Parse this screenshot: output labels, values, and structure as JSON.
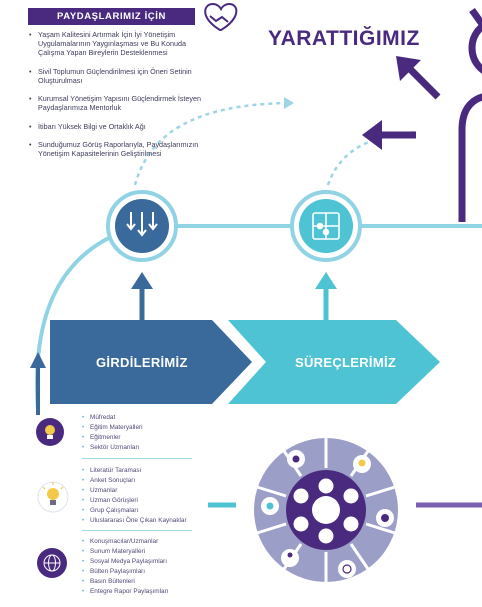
{
  "header": {
    "banner": "PAYDAŞLARIMIZ İÇİN",
    "created": "YARATTIĞIMIZ"
  },
  "stakeholder_items": [
    "Yaşam Kalitesini Artırmak İçin İyi Yönetişim Uygulamalarının Yaygınlaşması ve Bu Konuda Çalışma Yapan Bireylerin Desteklenmesi",
    "Sivil Toplumun Güçlendirilmesi için Öneri Setinin Oluşturulması",
    "Kurumsal Yönetişim Yapısını Güçlendirmek İsteyen Paydaşlarımıza Mentorluk",
    "İtibarı Yüksek Bilgi ve Ortaklık Ağı",
    "Sunduğumuz Görüş Raporlarıyla, Paydaşlarımızın Yönetişim Kapasitelerinin Geliştirilmesi"
  ],
  "process": {
    "inputs_label": "GİRDİLERİMİZ",
    "processes_label": "SÜREÇLERİMİZ"
  },
  "inputs": {
    "group1": [
      "Müfredat",
      "Eğitim Materyalleri",
      "Eğitmenler",
      "Sektör Uzmanları"
    ],
    "group2": [
      "Literatür Taraması",
      "Anket Sonuçları",
      "Uzmanlar",
      "Uzman Görüşleri",
      "Grup Çalışmaları",
      "Uluslararası Öne Çıkan Kaynaklar"
    ],
    "group3": [
      "Konuşmacılar/Uzmanlar",
      "Sunum Materyalleri",
      "Sosyal Medya Paylaşımları",
      "Bülten Paylaşımları",
      "Basın Bültenleri",
      "Entegre Rapor Paylaşımları"
    ]
  },
  "icons": {
    "top": [
      "handshake-heart-icon",
      "person-outline-icon",
      "arrow-up-left-icon",
      "arrow-left-icon"
    ],
    "process": [
      "arrows-down-icon",
      "puzzle-icon"
    ],
    "inputs": [
      "lightbulb-head-icon",
      "lightbulb-icon",
      "globe-network-icon"
    ],
    "wheel": [
      "bank-icon",
      "lightbulb-icon",
      "presentation-icon",
      "group-icon",
      "target-icon",
      "people-icon",
      "podium-icon",
      "globe-icon",
      "person-icon",
      "speech-icon"
    ]
  },
  "colors": {
    "purple": "#4a2a7e",
    "dark_blue": "#3a6a9c",
    "teal": "#4ec3d3",
    "light_blue": "#8fd3e4",
    "circle_grey": "#9b9fc7"
  }
}
